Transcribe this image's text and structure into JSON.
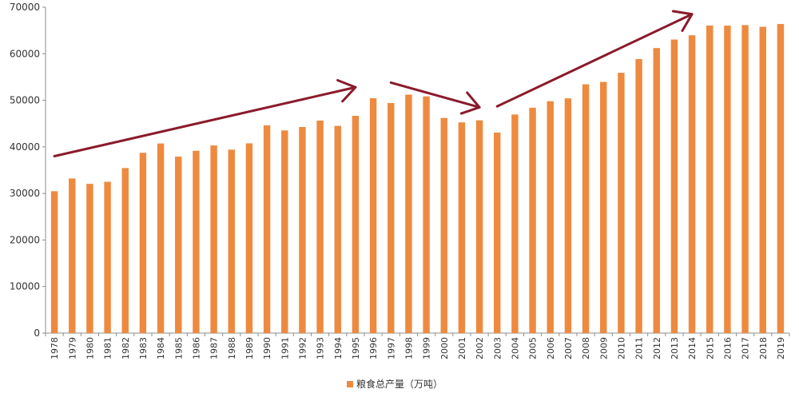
{
  "chart_data": {
    "type": "bar",
    "categories": [
      "1978",
      "1979",
      "1980",
      "1981",
      "1982",
      "1983",
      "1984",
      "1985",
      "1986",
      "1987",
      "1988",
      "1989",
      "1990",
      "1991",
      "1992",
      "1993",
      "1994",
      "1995",
      "1996",
      "1997",
      "1998",
      "1999",
      "2000",
      "2001",
      "2002",
      "2003",
      "2004",
      "2005",
      "2006",
      "2007",
      "2008",
      "2009",
      "2010",
      "2011",
      "2012",
      "2013",
      "2014",
      "2015",
      "2016",
      "2017",
      "2018",
      "2019"
    ],
    "series": [
      {
        "name": "粮食总产量（万吨）",
        "color": "#ED8A3F",
        "values": [
          30477,
          33212,
          32056,
          32502,
          35450,
          38728,
          40731,
          37911,
          39151,
          40298,
          39408,
          40755,
          44624,
          43529,
          44266,
          45649,
          44510,
          46662,
          50454,
          49417,
          51230,
          50839,
          46218,
          45264,
          45706,
          43070,
          46947,
          48402,
          49804,
          50414,
          53434,
          53941,
          55911,
          58849,
          61223,
          63048,
          63965,
          66060,
          66044,
          66161,
          65789,
          66384
        ]
      }
    ],
    "ylim": [
      0,
      70000
    ],
    "yticks": [
      0,
      10000,
      20000,
      30000,
      40000,
      50000,
      60000,
      70000
    ],
    "ytick_labels": [
      "0",
      "10000",
      "20000",
      "30000",
      "40000",
      "50000",
      "60000",
      "70000"
    ],
    "grid": false,
    "legend_position": "bottom-center",
    "annotations": [
      {
        "type": "arrow",
        "from": {
          "x": "1978",
          "y": 38000
        },
        "to": {
          "x": "1995",
          "y": 52800
        },
        "color": "#8B1A2B"
      },
      {
        "type": "arrow",
        "from": {
          "x": "1997",
          "y": 53800
        },
        "to": {
          "x": "2002",
          "y": 48500
        },
        "color": "#8B1A2B"
      },
      {
        "type": "arrow",
        "from": {
          "x": "2003",
          "y": 48700
        },
        "to": {
          "x": "2014",
          "y": 68500
        },
        "color": "#8B1A2B"
      }
    ]
  }
}
